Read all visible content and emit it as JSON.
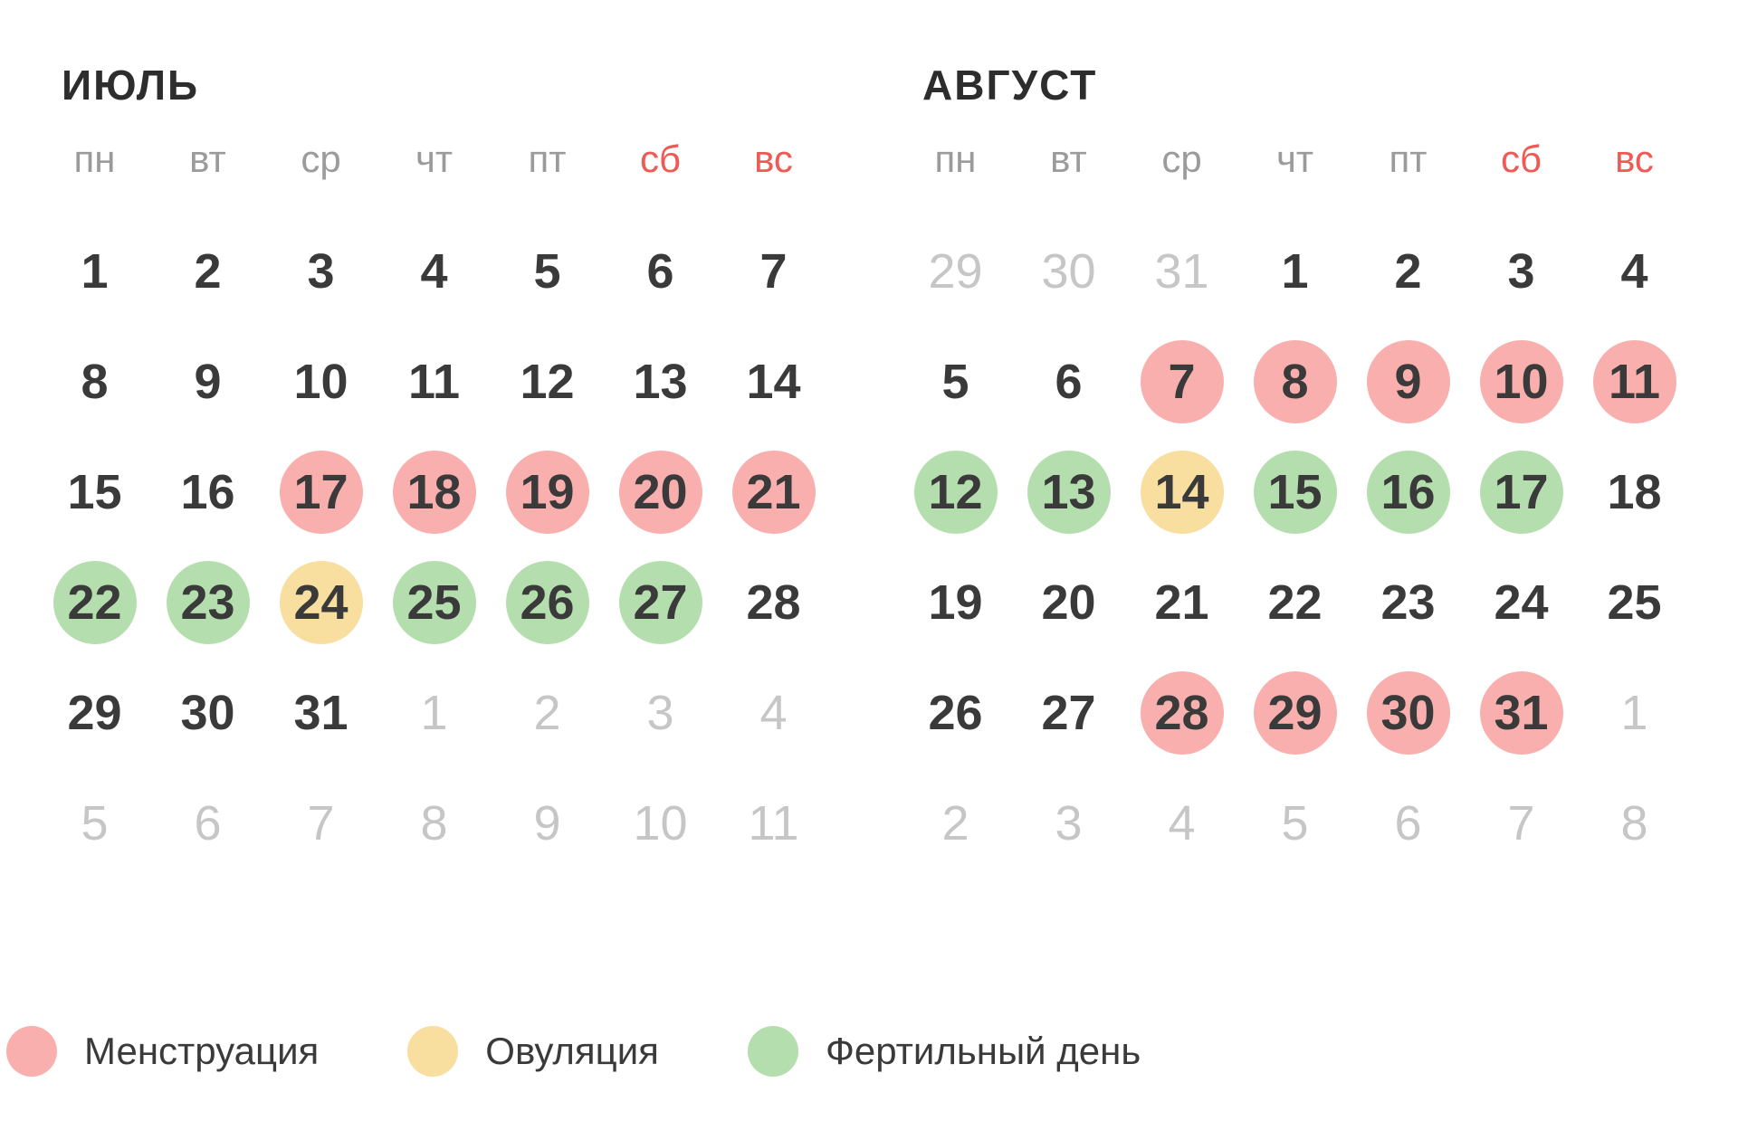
{
  "colors": {
    "menstruation": "#F8AFAD",
    "ovulation": "#F8DE9F",
    "fertile": "#B5DEAE",
    "weekend_header": "#EF5A55",
    "day_text": "#3A3A3A",
    "muted_day_text": "#C6C6C6",
    "weekday_header_text": "#9B9B9B",
    "month_title_text": "#2D2D2D",
    "background": "#FFFFFF"
  },
  "weekdays": [
    {
      "label": "пн",
      "weekend": false
    },
    {
      "label": "вт",
      "weekend": false
    },
    {
      "label": "ср",
      "weekend": false
    },
    {
      "label": "чт",
      "weekend": false
    },
    {
      "label": "пт",
      "weekend": false
    },
    {
      "label": "сб",
      "weekend": true
    },
    {
      "label": "вс",
      "weekend": true
    }
  ],
  "months": [
    {
      "title": "ИЮЛЬ",
      "weeks": [
        [
          {
            "d": "1",
            "s": "normal"
          },
          {
            "d": "2",
            "s": "normal"
          },
          {
            "d": "3",
            "s": "normal"
          },
          {
            "d": "4",
            "s": "normal"
          },
          {
            "d": "5",
            "s": "normal"
          },
          {
            "d": "6",
            "s": "normal"
          },
          {
            "d": "7",
            "s": "normal"
          }
        ],
        [
          {
            "d": "8",
            "s": "normal"
          },
          {
            "d": "9",
            "s": "normal"
          },
          {
            "d": "10",
            "s": "normal"
          },
          {
            "d": "11",
            "s": "normal"
          },
          {
            "d": "12",
            "s": "normal"
          },
          {
            "d": "13",
            "s": "normal"
          },
          {
            "d": "14",
            "s": "normal"
          }
        ],
        [
          {
            "d": "15",
            "s": "normal"
          },
          {
            "d": "16",
            "s": "normal"
          },
          {
            "d": "17",
            "s": "menstruation"
          },
          {
            "d": "18",
            "s": "menstruation"
          },
          {
            "d": "19",
            "s": "menstruation"
          },
          {
            "d": "20",
            "s": "menstruation"
          },
          {
            "d": "21",
            "s": "menstruation"
          }
        ],
        [
          {
            "d": "22",
            "s": "fertile"
          },
          {
            "d": "23",
            "s": "fertile"
          },
          {
            "d": "24",
            "s": "ovulation"
          },
          {
            "d": "25",
            "s": "fertile"
          },
          {
            "d": "26",
            "s": "fertile"
          },
          {
            "d": "27",
            "s": "fertile"
          },
          {
            "d": "28",
            "s": "normal"
          }
        ],
        [
          {
            "d": "29",
            "s": "normal"
          },
          {
            "d": "30",
            "s": "normal"
          },
          {
            "d": "31",
            "s": "normal"
          },
          {
            "d": "1",
            "s": "muted"
          },
          {
            "d": "2",
            "s": "muted"
          },
          {
            "d": "3",
            "s": "muted"
          },
          {
            "d": "4",
            "s": "muted"
          }
        ],
        [
          {
            "d": "5",
            "s": "muted"
          },
          {
            "d": "6",
            "s": "muted"
          },
          {
            "d": "7",
            "s": "muted"
          },
          {
            "d": "8",
            "s": "muted"
          },
          {
            "d": "9",
            "s": "muted"
          },
          {
            "d": "10",
            "s": "muted"
          },
          {
            "d": "11",
            "s": "muted"
          }
        ]
      ]
    },
    {
      "title": "АВГУСТ",
      "weeks": [
        [
          {
            "d": "29",
            "s": "muted"
          },
          {
            "d": "30",
            "s": "muted"
          },
          {
            "d": "31",
            "s": "muted"
          },
          {
            "d": "1",
            "s": "normal"
          },
          {
            "d": "2",
            "s": "normal"
          },
          {
            "d": "3",
            "s": "normal"
          },
          {
            "d": "4",
            "s": "normal"
          }
        ],
        [
          {
            "d": "5",
            "s": "normal"
          },
          {
            "d": "6",
            "s": "normal"
          },
          {
            "d": "7",
            "s": "menstruation"
          },
          {
            "d": "8",
            "s": "menstruation"
          },
          {
            "d": "9",
            "s": "menstruation"
          },
          {
            "d": "10",
            "s": "menstruation"
          },
          {
            "d": "11",
            "s": "menstruation"
          }
        ],
        [
          {
            "d": "12",
            "s": "fertile"
          },
          {
            "d": "13",
            "s": "fertile"
          },
          {
            "d": "14",
            "s": "ovulation"
          },
          {
            "d": "15",
            "s": "fertile"
          },
          {
            "d": "16",
            "s": "fertile"
          },
          {
            "d": "17",
            "s": "fertile"
          },
          {
            "d": "18",
            "s": "normal"
          }
        ],
        [
          {
            "d": "19",
            "s": "normal"
          },
          {
            "d": "20",
            "s": "normal"
          },
          {
            "d": "21",
            "s": "normal"
          },
          {
            "d": "22",
            "s": "normal"
          },
          {
            "d": "23",
            "s": "normal"
          },
          {
            "d": "24",
            "s": "normal"
          },
          {
            "d": "25",
            "s": "normal"
          }
        ],
        [
          {
            "d": "26",
            "s": "normal"
          },
          {
            "d": "27",
            "s": "normal"
          },
          {
            "d": "28",
            "s": "menstruation"
          },
          {
            "d": "29",
            "s": "menstruation"
          },
          {
            "d": "30",
            "s": "menstruation"
          },
          {
            "d": "31",
            "s": "menstruation"
          },
          {
            "d": "1",
            "s": "muted"
          }
        ],
        [
          {
            "d": "2",
            "s": "muted"
          },
          {
            "d": "3",
            "s": "muted"
          },
          {
            "d": "4",
            "s": "muted"
          },
          {
            "d": "5",
            "s": "muted"
          },
          {
            "d": "6",
            "s": "muted"
          },
          {
            "d": "7",
            "s": "muted"
          },
          {
            "d": "8",
            "s": "muted"
          }
        ]
      ]
    }
  ],
  "legend": [
    {
      "label": "Менструация",
      "state": "menstruation"
    },
    {
      "label": "Овуляция",
      "state": "ovulation"
    },
    {
      "label": "Фертильный день",
      "state": "fertile"
    }
  ]
}
